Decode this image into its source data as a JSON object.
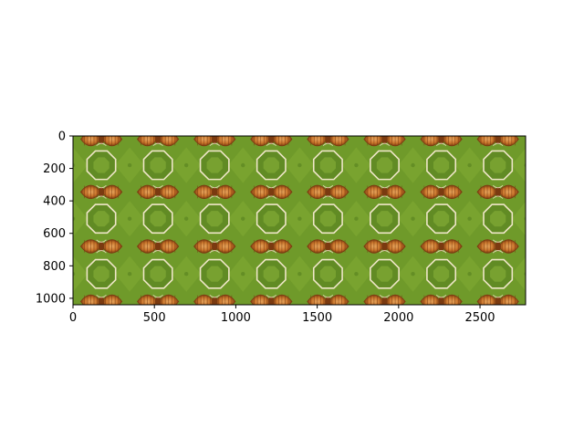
{
  "chart_data": {
    "type": "heatmap",
    "title": "",
    "xlabel": "",
    "ylabel": "",
    "xlim": [
      0,
      2780
    ],
    "ylim": [
      1040,
      0
    ],
    "x_ticks": [
      {
        "value": 0,
        "label": "0"
      },
      {
        "value": 500,
        "label": "500"
      },
      {
        "value": 1000,
        "label": "1000"
      },
      {
        "value": 1500,
        "label": "1500"
      },
      {
        "value": 2000,
        "label": "2000"
      },
      {
        "value": 2500,
        "label": "2500"
      }
    ],
    "y_ticks": [
      {
        "value": 0,
        "label": "0"
      },
      {
        "value": 200,
        "label": "200"
      },
      {
        "value": 400,
        "label": "400"
      },
      {
        "value": 600,
        "label": "600"
      },
      {
        "value": 800,
        "label": "800"
      },
      {
        "value": 1000,
        "label": "1000"
      }
    ],
    "grid": false,
    "image": {
      "description_tile_width": 348,
      "pattern_rows": [
        {
          "kind": "orange-leaf-band",
          "y": 20
        },
        {
          "kind": "octagon-band",
          "y": 180
        },
        {
          "kind": "orange-leaf-band",
          "y": 345
        },
        {
          "kind": "octagon-band",
          "y": 510
        },
        {
          "kind": "orange-leaf-band",
          "y": 680
        },
        {
          "kind": "octagon-band",
          "y": 850
        },
        {
          "kind": "orange-leaf-band",
          "y": 1020
        }
      ],
      "colors": {
        "grass": "#6f9a2a",
        "grass_light": "#8cb43a",
        "grass_dark": "#4f7a1c",
        "leaf_orange": "#c8742a",
        "leaf_light": "#e8a860",
        "leaf_dark": "#7a3a10",
        "octagon_outline": "#efe6c8"
      }
    }
  }
}
